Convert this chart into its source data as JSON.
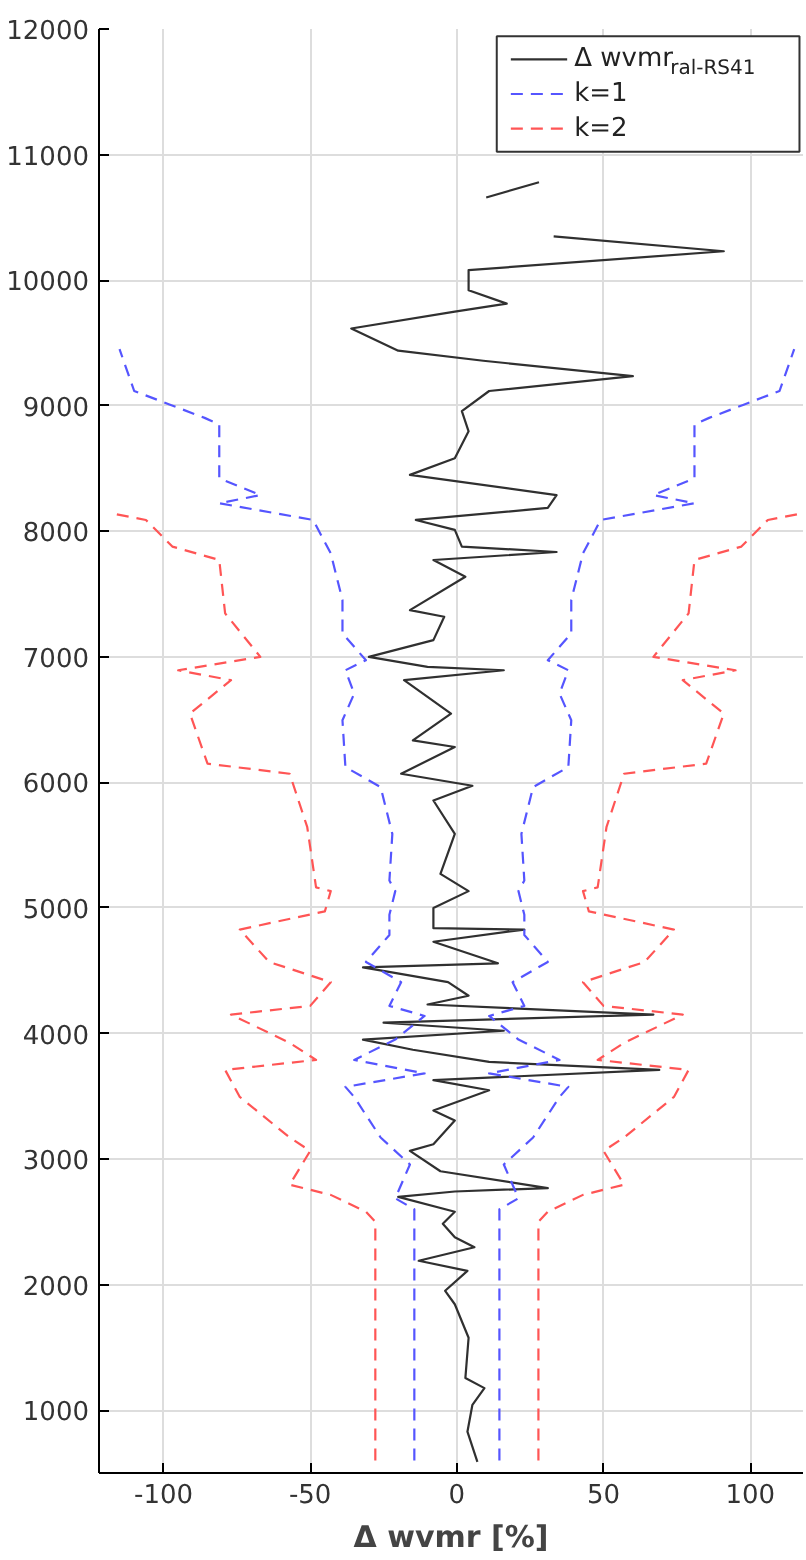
{
  "chart_data": {
    "type": "line",
    "orientation": "horizontal",
    "xlabel": "Δ wvmr [%]",
    "xlim": [
      -122,
      118
    ],
    "xticks": [
      -100,
      -50,
      0,
      50,
      100
    ],
    "ylim": [
      500,
      12000
    ],
    "yticks": [
      1000,
      2000,
      3000,
      4000,
      5000,
      6000,
      7000,
      8000,
      9000,
      10000,
      11000,
      12000
    ],
    "grid": true,
    "legend": "top right",
    "series": [
      {
        "name": "Δ wvmr$_{ral-RS41}$",
        "color": "#303030",
        "line_style": "solid",
        "x": [
          589,
          829,
          1043,
          1176,
          1256,
          1577,
          1844,
          1951,
          2110,
          2190,
          2298,
          2378,
          2485,
          2581,
          2699,
          2742,
          2769,
          2903,
          3065,
          3118,
          3307,
          3387,
          3548,
          3629,
          3710,
          3774,
          3871,
          3952,
          4022,
          4086,
          4151,
          4231,
          4301,
          4409,
          4527,
          4559,
          4731,
          4828,
          4839,
          5000,
          5134,
          5271,
          5590,
          5856,
          5973,
          6069,
          6282,
          6335,
          6548,
          6814,
          6893,
          6920,
          7000,
          7133,
          7319,
          7372,
          7638,
          7771,
          7835,
          7878,
          8011,
          8090,
          8186,
          8288,
          8449,
          8582,
          8796,
          8957,
          9117,
          9235,
          9358,
          9438,
          9615,
          9749,
          9813,
          9920,
          10080,
          10230,
          10348,
          10500,
          10658,
          10780
        ],
        "values": [
          7,
          3.6,
          5.3,
          9.4,
          2.9,
          4,
          -0.7,
          -4,
          3.6,
          -13,
          6,
          -0.7,
          -4.8,
          -0.7,
          -20,
          -0.7,
          31,
          -5.6,
          -16,
          -8,
          -0.7,
          -8,
          11,
          -8,
          69,
          11,
          -15,
          -32,
          16,
          -25,
          67,
          -10,
          4,
          -3,
          -32,
          14,
          -8,
          23,
          -8,
          -8,
          4,
          -5.6,
          -0.7,
          -8,
          5.3,
          -19,
          -0.7,
          -15,
          -2,
          -18,
          16,
          -10,
          -30,
          -8,
          -4.3,
          -16,
          2.9,
          -8,
          34,
          1.7,
          -0.7,
          -14,
          31,
          34,
          -16,
          -0.7,
          4,
          1.7,
          11,
          60,
          9,
          -20,
          -36,
          -0.7,
          17,
          4,
          4,
          91,
          33,
          null,
          10,
          28
        ]
      },
      {
        "name": "k=1",
        "color": "#5555ff",
        "line_style": "dashed",
        "x": [
          600,
          2600,
          2688,
          2957,
          3172,
          3495,
          3575,
          3683,
          3790,
          3952,
          4140,
          4220,
          4409,
          4570,
          4785,
          4946,
          5134,
          5218,
          5590,
          5963,
          6122,
          6495,
          6707,
          6893,
          6973,
          7186,
          7452,
          7824,
          8090,
          8223,
          8288,
          8422,
          8850,
          8903,
          9010,
          9117,
          9450
        ],
        "values": [
          14.5,
          14.5,
          21,
          16,
          26,
          35,
          38,
          11,
          35,
          21,
          11,
          23,
          19,
          31,
          23,
          23,
          21,
          23,
          22,
          26,
          38,
          39,
          35,
          38,
          31,
          39,
          39,
          43,
          49,
          81,
          67,
          81,
          81,
          86,
          98,
          110,
          115
        ]
      },
      {
        "color": "#5555ff",
        "line_style": "dashed",
        "x": [
          600,
          2600,
          2688,
          2957,
          3172,
          3495,
          3575,
          3683,
          3790,
          3952,
          4140,
          4220,
          4409,
          4570,
          4785,
          4946,
          5134,
          5218,
          5590,
          5963,
          6122,
          6495,
          6707,
          6893,
          6973,
          7186,
          7452,
          7824,
          8090,
          8223,
          8288,
          8422,
          8850,
          8903,
          9010,
          9117,
          9450
        ],
        "values": [
          -14.5,
          -14.5,
          -21,
          -16,
          -26,
          -35,
          -38,
          -11,
          -35,
          -21,
          -11,
          -23,
          -19,
          -31,
          -23,
          -23,
          -21,
          -23,
          -22,
          -26,
          -38,
          -39,
          -35,
          -38,
          -31,
          -39,
          -39,
          -43,
          -49,
          -81,
          -67,
          -81,
          -81,
          -86,
          -98,
          -110,
          -115
        ]
      },
      {
        "name": "k=2",
        "color": "#ff5555",
        "line_style": "dashed",
        "x": [
          600,
          2500,
          2581,
          2715,
          2796,
          3065,
          3172,
          3495,
          3710,
          3790,
          3925,
          4151,
          4220,
          4409,
          4570,
          4828,
          4973,
          5134,
          5164,
          5643,
          6069,
          6149,
          6548,
          6814,
          6893,
          7000,
          7346,
          7771,
          7878,
          8090,
          8140
        ],
        "values": [
          27.8,
          27.8,
          31,
          43,
          57,
          50,
          57,
          74,
          79,
          48,
          57,
          77,
          50,
          43,
          64,
          74,
          45,
          43,
          48,
          51,
          57,
          85,
          91,
          77,
          95,
          67,
          79,
          81,
          97,
          106,
          117
        ]
      },
      {
        "color": "#ff5555",
        "line_style": "dashed",
        "x": [
          600,
          2500,
          2581,
          2715,
          2796,
          3065,
          3172,
          3495,
          3710,
          3790,
          3925,
          4151,
          4220,
          4409,
          4570,
          4828,
          4973,
          5134,
          5164,
          5643,
          6069,
          6149,
          6548,
          6814,
          6893,
          7000,
          7346,
          7771,
          7878,
          8090,
          8140
        ],
        "values": [
          -27.8,
          -27.8,
          -31,
          -43,
          -57,
          -50,
          -57,
          -74,
          -79,
          -48,
          -57,
          -77,
          -50,
          -43,
          -64,
          -74,
          -45,
          -43,
          -48,
          -51,
          -57,
          -85,
          -91,
          -77,
          -95,
          -67,
          -79,
          -81,
          -97,
          -106,
          -117
        ]
      }
    ]
  }
}
